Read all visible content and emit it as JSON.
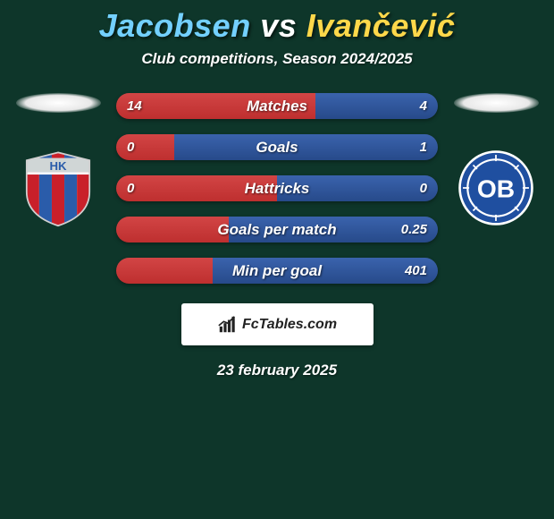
{
  "background_color": "#0e362a",
  "title": {
    "player1": "Jacobsen",
    "vs": "vs",
    "player2": "Ivančević",
    "player1_color": "#73d0ff",
    "vs_color": "#ffffff",
    "player2_color": "#ffd84a"
  },
  "subtitle": "Club competitions, Season 2024/2025",
  "logos": {
    "left": {
      "type": "crest-hk",
      "primary": "#c9202a",
      "secondary": "#2a5caa",
      "accent": "#ffffff"
    },
    "right": {
      "type": "crest-ob",
      "primary": "#1f4fa0",
      "ring": "#ffffff",
      "text": "OB",
      "text_color": "#ffffff"
    }
  },
  "bars": {
    "left_color": "#be2f2f",
    "right_color": "#274a8a",
    "track_color": "#1a1a1a",
    "rows": [
      {
        "label": "Matches",
        "left_val": "14",
        "right_val": "4",
        "left_pct": 62,
        "right_pct": 38
      },
      {
        "label": "Goals",
        "left_val": "0",
        "right_val": "1",
        "left_pct": 18,
        "right_pct": 82
      },
      {
        "label": "Hattricks",
        "left_val": "0",
        "right_val": "0",
        "left_pct": 50,
        "right_pct": 50
      },
      {
        "label": "Goals per match",
        "left_val": "",
        "right_val": "0.25",
        "left_pct": 35,
        "right_pct": 65
      },
      {
        "label": "Min per goal",
        "left_val": "",
        "right_val": "401",
        "left_pct": 30,
        "right_pct": 70
      }
    ]
  },
  "footer": {
    "brand": "FcTables.com",
    "icon_color": "#222222",
    "bg": "#ffffff"
  },
  "date": "23 february 2025"
}
